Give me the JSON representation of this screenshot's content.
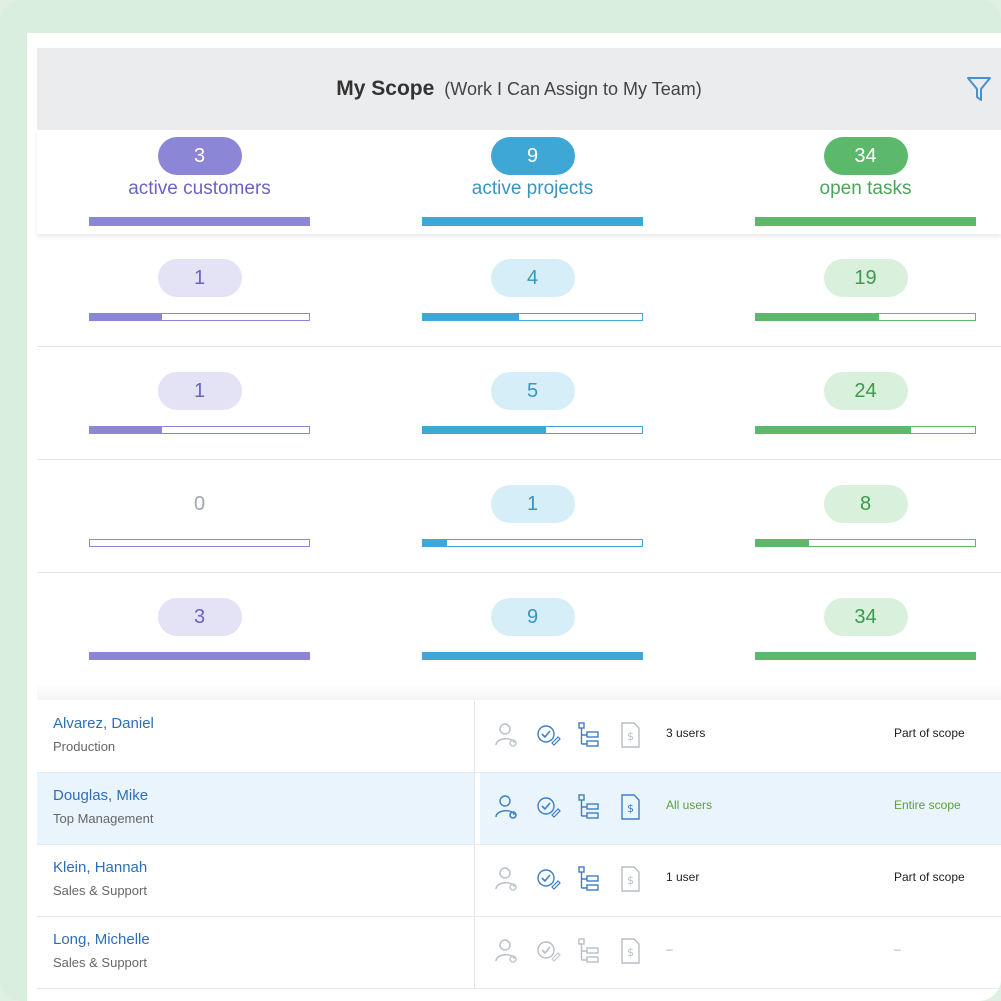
{
  "header": {
    "title": "My Scope",
    "subtitle": "(Work I Can Assign to My Team)",
    "filter_icon": "filter-icon"
  },
  "colors": {
    "customers": "#8b86d6",
    "projects": "#3fa7d6",
    "tasks": "#5cb86a",
    "customers_light": "#e4e2f5",
    "projects_light": "#d6eef8",
    "tasks_light": "#d8f0dc"
  },
  "summary": {
    "customers": {
      "value": "3",
      "label": "active customers"
    },
    "projects": {
      "value": "9",
      "label": "active projects"
    },
    "tasks": {
      "value": "34",
      "label": "open tasks"
    }
  },
  "rows": [
    {
      "customers": "1",
      "customers_pct": 0.33,
      "projects": "4",
      "projects_pct": 0.44,
      "tasks": "19",
      "tasks_pct": 0.56
    },
    {
      "customers": "1",
      "customers_pct": 0.33,
      "projects": "5",
      "projects_pct": 0.56,
      "tasks": "24",
      "tasks_pct": 0.71
    },
    {
      "customers": "0",
      "customers_pct": 0,
      "projects": "1",
      "projects_pct": 0.11,
      "tasks": "8",
      "tasks_pct": 0.24
    },
    {
      "customers": "3",
      "customers_pct": 1,
      "projects": "9",
      "projects_pct": 1,
      "tasks": "34",
      "tasks_pct": 1
    }
  ],
  "users": [
    {
      "name": "Alvarez, Daniel",
      "dept": "Production",
      "users": "3 users",
      "scope": "Part of scope",
      "selected": false,
      "muted": true
    },
    {
      "name": "Douglas, Mike",
      "dept": "Top Management",
      "users": "All users",
      "scope": "Entire scope",
      "selected": true,
      "muted": false
    },
    {
      "name": "Klein, Hannah",
      "dept": "Sales & Support",
      "users": "1 user",
      "scope": "Part of scope",
      "selected": false,
      "muted": true
    },
    {
      "name": "Long, Michelle",
      "dept": "Sales & Support",
      "users": "–",
      "scope": "–",
      "selected": false,
      "muted": true
    }
  ],
  "row_icons": [
    "user-settings-icon",
    "check-edit-icon",
    "hierarchy-icon",
    "billing-doc-icon"
  ]
}
